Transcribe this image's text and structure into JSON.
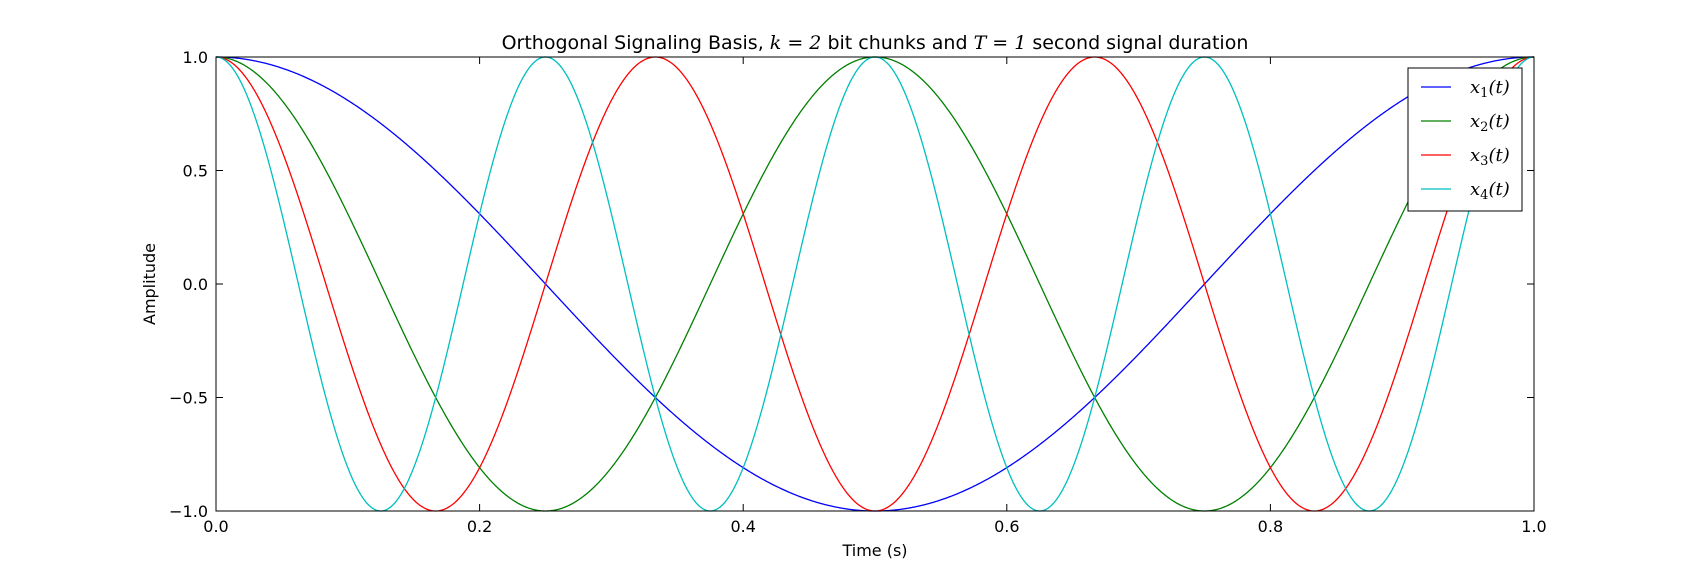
{
  "chart_data": {
    "type": "line",
    "title": "Orthogonal Signaling Basis, k = 2 bit chunks and T = 1 second signal duration",
    "title_parts": {
      "prefix": "Orthogonal Signaling Basis, ",
      "k_expr": "k = 2",
      "middle": " bit chunks and ",
      "T_expr": "T = 1",
      "suffix": " second signal duration"
    },
    "xlabel": "Time (s)",
    "ylabel": "Amplitude",
    "xlim": [
      0.0,
      1.0
    ],
    "ylim": [
      -1.0,
      1.0
    ],
    "xticks": [
      0.0,
      0.2,
      0.4,
      0.6,
      0.8,
      1.0
    ],
    "xtick_labels": [
      "0.0",
      "0.2",
      "0.4",
      "0.6",
      "0.8",
      "1.0"
    ],
    "yticks": [
      -1.0,
      -0.5,
      0.0,
      0.5,
      1.0
    ],
    "ytick_labels": [
      "−1.0",
      "−0.5",
      "0.0",
      "0.5",
      "1.0"
    ],
    "grid": false,
    "legend_position": "top-right",
    "series": [
      {
        "name": "x1(t)",
        "label_base": "x",
        "label_sub": "1",
        "label_arg": "(t)",
        "color": "#0000ff",
        "frequency_hz": 1
      },
      {
        "name": "x2(t)",
        "label_base": "x",
        "label_sub": "2",
        "label_arg": "(t)",
        "color": "#008000",
        "frequency_hz": 2
      },
      {
        "name": "x3(t)",
        "label_base": "x",
        "label_sub": "3",
        "label_arg": "(t)",
        "color": "#ff0000",
        "frequency_hz": 3
      },
      {
        "name": "x4(t)",
        "label_base": "x",
        "label_sub": "4",
        "label_arg": "(t)",
        "color": "#00bfbf",
        "frequency_hz": 4
      }
    ]
  }
}
